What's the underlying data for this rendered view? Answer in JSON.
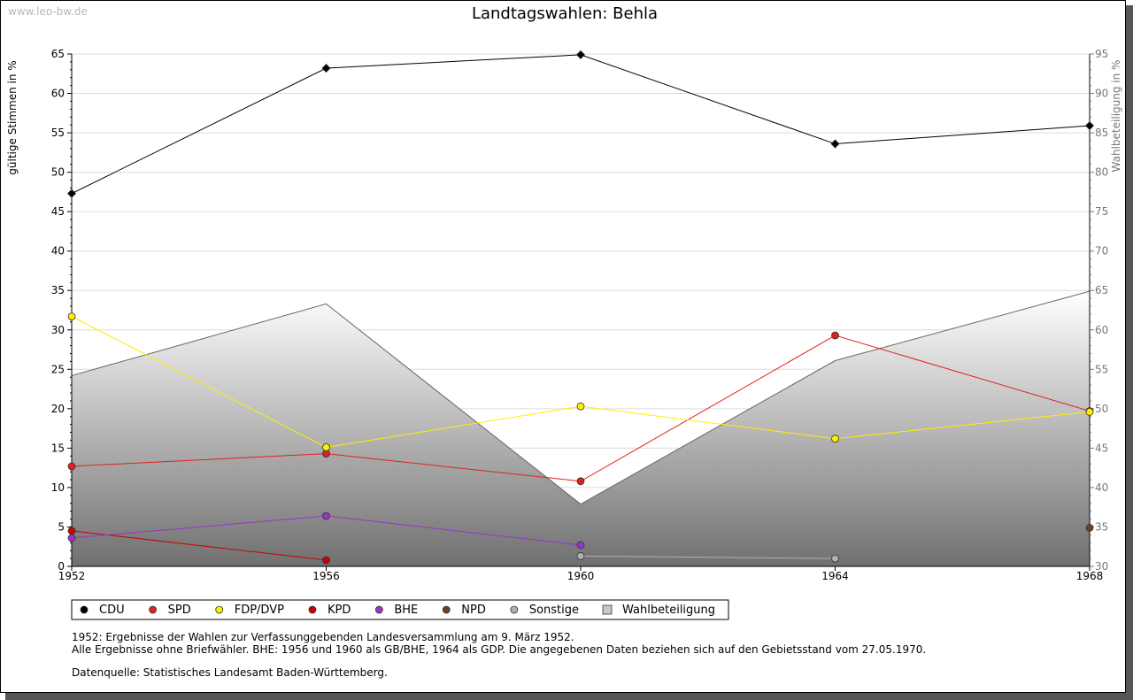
{
  "watermark": "www.leo-bw.de",
  "notes": [
    "1952: Ergebnisse der Wahlen zur Verfassunggebenden Landesversammlung am 9. März 1952.",
    "Alle Ergebnisse ohne Briefwähler. BHE: 1956 und 1960 als GB/BHE, 1964 als GDP. Die angegebenen Daten beziehen sich auf den Gebietsstand vom 27.05.1970.",
    "Datenquelle: Statistisches Landesamt Baden-Württemberg."
  ],
  "chart_data": {
    "type": "line",
    "title": "Landtagswahlen: Behla",
    "ylabel": "gültige Stimmen in %",
    "y2label": "Wahlbeteiligung in %",
    "x": [
      1952,
      1956,
      1960,
      1964,
      1968
    ],
    "ylim": [
      0,
      65
    ],
    "y2lim": [
      30,
      95
    ],
    "yticks": [
      0,
      5,
      10,
      15,
      20,
      25,
      30,
      35,
      40,
      45,
      50,
      55,
      60,
      65
    ],
    "y2ticks": [
      30,
      35,
      40,
      45,
      50,
      55,
      60,
      65,
      70,
      75,
      80,
      85,
      90,
      95
    ],
    "grid": true,
    "legend_position": "bottom-left",
    "series": [
      {
        "name": "CDU",
        "color": "#000000",
        "values": [
          47.3,
          63.2,
          64.9,
          53.6,
          55.9
        ]
      },
      {
        "name": "SPD",
        "color": "#e2211c",
        "values": [
          12.7,
          14.3,
          10.8,
          29.3,
          19.7
        ]
      },
      {
        "name": "FDP/DVP",
        "color": "#ffee00",
        "values": [
          31.7,
          15.1,
          20.3,
          16.2,
          19.6
        ]
      },
      {
        "name": "KPD",
        "color": "#cc0000",
        "values": [
          4.5,
          0.8,
          null,
          null,
          null
        ]
      },
      {
        "name": "BHE",
        "color": "#9933cc",
        "values": [
          3.6,
          6.4,
          2.7,
          null,
          null
        ]
      },
      {
        "name": "NPD",
        "color": "#6b4226",
        "values": [
          null,
          null,
          null,
          null,
          4.9
        ]
      },
      {
        "name": "Sonstige",
        "color": "#b0b0b0",
        "values": [
          null,
          null,
          1.3,
          1.0,
          null
        ]
      }
    ],
    "turnout": {
      "name": "Wahlbeteiligung",
      "axis": "right",
      "values": [
        54.2,
        63.3,
        37.9,
        56.1,
        64.9
      ]
    }
  }
}
